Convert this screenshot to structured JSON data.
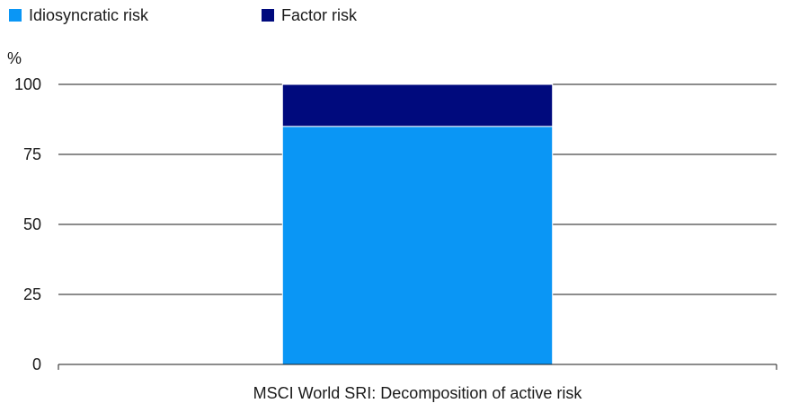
{
  "chart_data": {
    "type": "bar",
    "stacked": true,
    "categories": [
      "MSCI World SRI: Decomposition of active risk"
    ],
    "series": [
      {
        "name": "Idiosyncratic risk",
        "values": [
          85
        ],
        "color": "#0a96f5"
      },
      {
        "name": "Factor risk",
        "values": [
          15
        ],
        "color": "#000a7d"
      }
    ],
    "title": "",
    "xlabel": "",
    "ylabel": "%",
    "ylim": [
      0,
      100
    ],
    "yticks": [
      0,
      25,
      50,
      75,
      100
    ],
    "grid": true,
    "legend": "top-left"
  }
}
